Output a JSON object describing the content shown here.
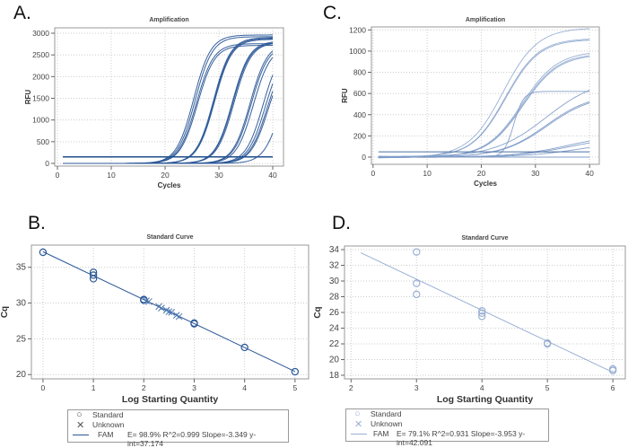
{
  "panels": {
    "A": {
      "letter": "A."
    },
    "B": {
      "letter": "B."
    },
    "C": {
      "letter": "C."
    },
    "D": {
      "letter": "D."
    }
  },
  "legends": {
    "B": {
      "standard": "Standard",
      "unknown": "Unknown",
      "fam": "FAM",
      "stats": "E= 98.9% R^2=0.999 Slope=-3.349 y-int=37.174"
    },
    "D": {
      "standard": "Standard",
      "unknown": "Unknown",
      "fam": "FAM",
      "stats": "E= 79.1% R^2=0.931 Slope=-3.953 y-int=42.091"
    }
  },
  "chart_data": [
    {
      "id": "A",
      "type": "line",
      "title": "Amplification",
      "xlabel": "Cycles",
      "ylabel": "RFU",
      "xlim": [
        -0.5,
        42
      ],
      "ylim": [
        -62,
        3124
      ],
      "xticks": [
        0,
        10,
        20,
        30,
        40
      ],
      "yticks": [
        0,
        500,
        1000,
        1500,
        2000,
        2500,
        3000
      ],
      "grid": true,
      "color": "#2b5797",
      "threshold": 150,
      "curve_model": "sigmoid: RFU = plateau / (1 + exp(-(cycle - midpoint) / steepness))",
      "series": [
        {
          "midpoint": 25.3,
          "plateau": 2960,
          "steepness": 1.6
        },
        {
          "midpoint": 25.6,
          "plateau": 2920,
          "steepness": 1.6
        },
        {
          "midpoint": 25.8,
          "plateau": 2760,
          "steepness": 1.6
        },
        {
          "midpoint": 26.0,
          "plateau": 2720,
          "steepness": 1.6
        },
        {
          "midpoint": 29.0,
          "plateau": 2900,
          "steepness": 1.6
        },
        {
          "midpoint": 29.1,
          "plateau": 2880,
          "steepness": 1.6
        },
        {
          "midpoint": 29.2,
          "plateau": 2860,
          "steepness": 1.6
        },
        {
          "midpoint": 32.5,
          "plateau": 2820,
          "steepness": 1.6
        },
        {
          "midpoint": 32.6,
          "plateau": 2800,
          "steepness": 1.6
        },
        {
          "midpoint": 32.8,
          "plateau": 2790,
          "steepness": 1.6
        },
        {
          "midpoint": 35.8,
          "plateau": 2780,
          "steepness": 1.6
        },
        {
          "midpoint": 36.0,
          "plateau": 2740,
          "steepness": 1.6
        },
        {
          "midpoint": 36.4,
          "plateau": 2700,
          "steepness": 1.6
        },
        {
          "midpoint": 38.2,
          "plateau": 2700,
          "steepness": 1.6
        },
        {
          "midpoint": 38.6,
          "plateau": 2600,
          "steepness": 1.6
        },
        {
          "midpoint": 38.9,
          "plateau": 2500,
          "steepness": 1.6
        },
        {
          "midpoint": 39.1,
          "plateau": 2450,
          "steepness": 1.6
        },
        {
          "midpoint": 41.6,
          "plateau": 2600,
          "steepness": 1.6
        }
      ]
    },
    {
      "id": "C",
      "type": "line",
      "title": "Amplification",
      "xlabel": "Cycles",
      "ylabel": "RFU",
      "xlim": [
        -0.3,
        41.8
      ],
      "ylim": [
        -68,
        1228
      ],
      "xticks": [
        0,
        10,
        20,
        30,
        40
      ],
      "yticks": [
        0,
        200,
        400,
        600,
        800,
        1000,
        1200
      ],
      "grid": true,
      "color": "#7f9cc8",
      "threshold": 50,
      "curve_model": "sigmoid: RFU = plateau / (1 + exp(-(cycle - midpoint) / steepness))",
      "series": [
        {
          "midpoint": 24.0,
          "plateau": 1220,
          "steepness": 3.2
        },
        {
          "midpoint": 24.4,
          "plateau": 1120,
          "steepness": 3.1
        },
        {
          "midpoint": 24.5,
          "plateau": 1110,
          "steepness": 3.1
        },
        {
          "midpoint": 27.5,
          "plateau": 1000,
          "steepness": 3.3
        },
        {
          "midpoint": 27.6,
          "plateau": 980,
          "steepness": 3.3
        },
        {
          "midpoint": 27.7,
          "plateau": 970,
          "steepness": 3.3
        },
        {
          "midpoint": 26.0,
          "plateau": 620,
          "steepness": 0.9
        },
        {
          "midpoint": 32.0,
          "plateau": 750,
          "steepness": 4.8
        },
        {
          "midpoint": 32.0,
          "plateau": 600,
          "steepness": 4.2
        },
        {
          "midpoint": 32.2,
          "plateau": 590,
          "steepness": 4.2
        },
        {
          "midpoint": 36.0,
          "plateau": 220,
          "steepness": 5.0
        },
        {
          "midpoint": 36.5,
          "plateau": 200,
          "steepness": 5.0
        },
        {
          "midpoint": 38.0,
          "plateau": 150,
          "steepness": 5.0
        },
        {
          "midpoint": 80,
          "plateau": 0,
          "steepness": 1
        },
        {
          "midpoint": 80,
          "plateau": 0,
          "steepness": 1
        }
      ]
    },
    {
      "id": "B",
      "type": "scatter",
      "title": "Standard Curve",
      "xlabel": "Log Starting Quantity",
      "ylabel": "Cq",
      "xlim": [
        -0.23,
        5.27
      ],
      "ylim": [
        19.4,
        38.1
      ],
      "xticks": [
        0,
        1,
        2,
        3,
        4,
        5
      ],
      "yticks": [
        20,
        25,
        30,
        35
      ],
      "grid": true,
      "color": "#2b5797",
      "standard": [
        [
          0,
          37.1
        ],
        [
          1,
          34.3
        ],
        [
          1,
          33.9
        ],
        [
          1,
          33.4
        ],
        [
          2,
          30.5
        ],
        [
          2,
          30.4
        ],
        [
          3,
          27.2
        ],
        [
          3,
          27.1
        ],
        [
          4,
          23.8
        ],
        [
          5,
          20.4
        ]
      ],
      "unknown": [
        [
          2.05,
          30.3
        ],
        [
          2.1,
          30.2
        ],
        [
          2.3,
          29.5
        ],
        [
          2.35,
          29.3
        ],
        [
          2.45,
          29.0
        ],
        [
          2.5,
          28.8
        ],
        [
          2.55,
          28.7
        ],
        [
          2.65,
          28.3
        ],
        [
          2.7,
          28.1
        ]
      ],
      "fit": {
        "slope": -3.349,
        "intercept": 37.174,
        "x_range": [
          0,
          5
        ]
      }
    },
    {
      "id": "D",
      "type": "scatter",
      "title": "Standard Curve",
      "xlabel": "Log Starting Quantity",
      "ylabel": "Cq",
      "xlim": [
        1.9,
        6.19
      ],
      "ylim": [
        17.54,
        34.46
      ],
      "xticks": [
        2,
        3,
        4,
        5,
        6
      ],
      "yticks": [
        18,
        20,
        22,
        24,
        26,
        28,
        30,
        32,
        34
      ],
      "grid": true,
      "color": "#9bb0d4",
      "standard": [
        [
          3,
          33.7
        ],
        [
          3,
          29.7
        ],
        [
          3,
          28.3
        ],
        [
          4,
          26.2
        ],
        [
          4,
          25.9
        ],
        [
          4,
          25.5
        ],
        [
          5,
          22.1
        ],
        [
          5,
          22.0
        ],
        [
          6,
          18.8
        ],
        [
          6,
          18.6
        ]
      ],
      "unknown": [],
      "fit": {
        "slope": -3.953,
        "intercept": 42.091,
        "x_range": [
          2.15,
          6
        ]
      }
    }
  ]
}
